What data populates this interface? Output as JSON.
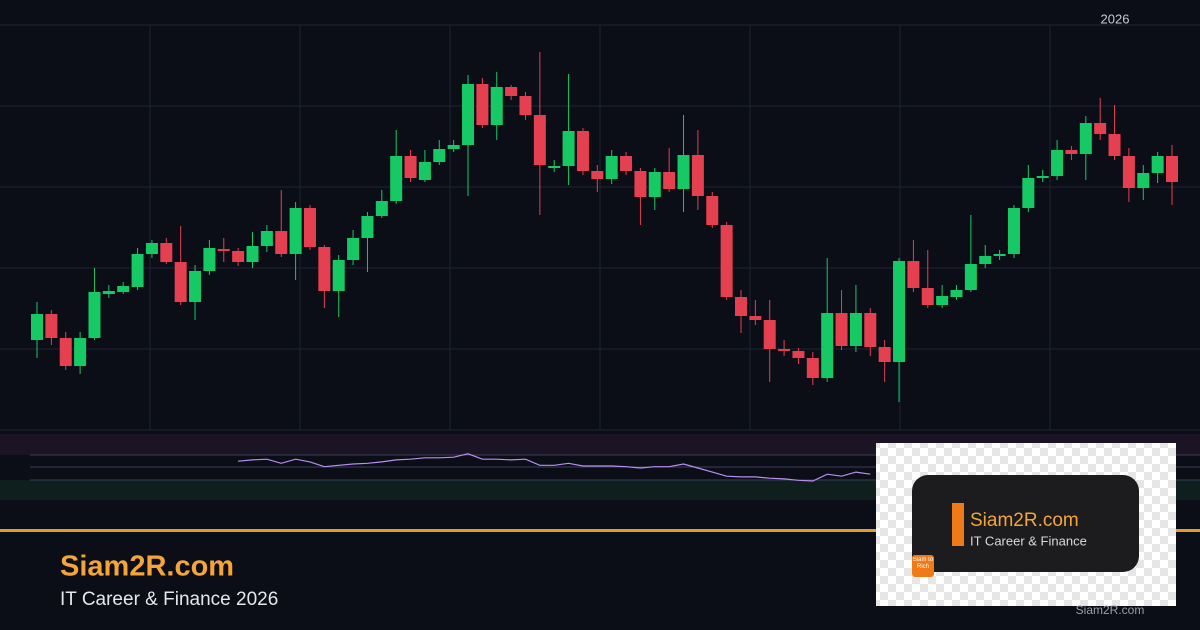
{
  "chart_data": {
    "type": "candlestick",
    "annotation": "2026",
    "ylim": [
      0,
      405
    ],
    "up_color": "#17c964",
    "down_color": "#e5404f",
    "ohlc": [
      [
        90,
        128,
        72,
        116
      ],
      [
        116,
        120,
        85,
        92
      ],
      [
        92,
        98,
        60,
        64
      ],
      [
        64,
        98,
        56,
        92
      ],
      [
        92,
        162,
        90,
        138
      ],
      [
        136,
        145,
        132,
        139
      ],
      [
        138,
        148,
        136,
        144
      ],
      [
        143,
        182,
        140,
        176
      ],
      [
        176,
        190,
        172,
        187
      ],
      [
        187,
        192,
        166,
        168
      ],
      [
        168,
        204,
        125,
        128
      ],
      [
        128,
        165,
        110,
        159
      ],
      [
        159,
        190,
        155,
        182
      ],
      [
        181,
        192,
        168,
        179
      ],
      [
        179,
        182,
        164,
        168
      ],
      [
        168,
        198,
        162,
        184
      ],
      [
        184,
        205,
        178,
        199
      ],
      [
        199,
        240,
        173,
        176
      ],
      [
        176,
        228,
        150,
        222
      ],
      [
        222,
        225,
        180,
        183
      ],
      [
        183,
        185,
        122,
        139
      ],
      [
        139,
        175,
        113,
        170
      ],
      [
        170,
        200,
        165,
        192
      ],
      [
        192,
        218,
        158,
        214
      ],
      [
        214,
        240,
        212,
        229
      ],
      [
        229,
        300,
        226,
        274
      ],
      [
        274,
        280,
        248,
        252
      ],
      [
        250,
        280,
        248,
        268
      ],
      [
        268,
        290,
        265,
        281
      ],
      [
        281,
        290,
        278,
        285
      ],
      [
        285,
        355,
        234,
        346
      ],
      [
        346,
        352,
        302,
        305
      ],
      [
        305,
        358,
        290,
        343
      ],
      [
        343,
        345,
        330,
        334
      ],
      [
        334,
        338,
        310,
        315
      ],
      [
        315,
        378,
        215,
        265
      ],
      [
        262,
        270,
        258,
        264
      ],
      [
        264,
        356,
        245,
        299
      ],
      [
        299,
        302,
        255,
        259
      ],
      [
        259,
        265,
        238,
        251
      ],
      [
        251,
        280,
        246,
        274
      ],
      [
        274,
        278,
        255,
        259
      ],
      [
        259,
        262,
        205,
        233
      ],
      [
        233,
        262,
        220,
        258
      ],
      [
        258,
        282,
        238,
        241
      ],
      [
        241,
        315,
        218,
        275
      ],
      [
        275,
        300,
        220,
        234
      ],
      [
        234,
        238,
        202,
        205
      ],
      [
        205,
        208,
        130,
        133
      ],
      [
        133,
        140,
        97,
        114
      ],
      [
        114,
        130,
        105,
        110
      ],
      [
        110,
        130,
        48,
        81
      ],
      [
        81,
        90,
        74,
        79
      ],
      [
        79,
        82,
        66,
        72
      ],
      [
        72,
        78,
        45,
        52
      ],
      [
        52,
        172,
        48,
        117
      ],
      [
        117,
        140,
        80,
        84
      ],
      [
        84,
        145,
        78,
        117
      ],
      [
        117,
        122,
        74,
        83
      ],
      [
        83,
        90,
        48,
        68
      ],
      [
        68,
        172,
        28,
        169
      ],
      [
        169,
        190,
        138,
        142
      ],
      [
        142,
        180,
        122,
        125
      ],
      [
        125,
        145,
        122,
        134
      ],
      [
        133,
        145,
        130,
        140
      ],
      [
        140,
        215,
        138,
        166
      ],
      [
        166,
        185,
        162,
        174
      ],
      [
        174,
        180,
        170,
        176
      ],
      [
        176,
        225,
        172,
        222
      ],
      [
        222,
        265,
        218,
        252
      ],
      [
        252,
        260,
        248,
        254
      ],
      [
        254,
        290,
        250,
        280
      ],
      [
        280,
        284,
        270,
        276
      ],
      [
        276,
        314,
        250,
        307
      ],
      [
        307,
        332,
        290,
        296
      ],
      [
        296,
        325,
        270,
        274
      ],
      [
        274,
        282,
        228,
        242
      ],
      [
        242,
        265,
        230,
        257
      ],
      [
        257,
        278,
        247,
        274
      ],
      [
        274,
        285,
        225,
        248
      ]
    ],
    "indicator": {
      "color": "#b98ef0",
      "ylim": [
        0,
        100
      ],
      "values": [
        null,
        null,
        null,
        null,
        null,
        null,
        null,
        null,
        null,
        null,
        null,
        null,
        null,
        null,
        57,
        59,
        60,
        54,
        60,
        56,
        49,
        51,
        53,
        54,
        56,
        59,
        60,
        62,
        62,
        63,
        68,
        60,
        60,
        59,
        60,
        51,
        51,
        54,
        50,
        50,
        50,
        49,
        47,
        49,
        49,
        53,
        47,
        41,
        35,
        34,
        34,
        32,
        31,
        29,
        28,
        38,
        35,
        41,
        38,
        null,
        null,
        null,
        null,
        null,
        null,
        null,
        null,
        null,
        null,
        null,
        null,
        null,
        null,
        null,
        null,
        null,
        null,
        null,
        null,
        null
      ]
    }
  },
  "branding": {
    "title": "Siam2R.com",
    "subtitle": "IT Career & Finance 2026"
  },
  "logo": {
    "title": "Siam2R.com",
    "subtitle": "IT Career & Finance",
    "badge": "Siam to Rich"
  },
  "watermark": "Siam2R.com"
}
